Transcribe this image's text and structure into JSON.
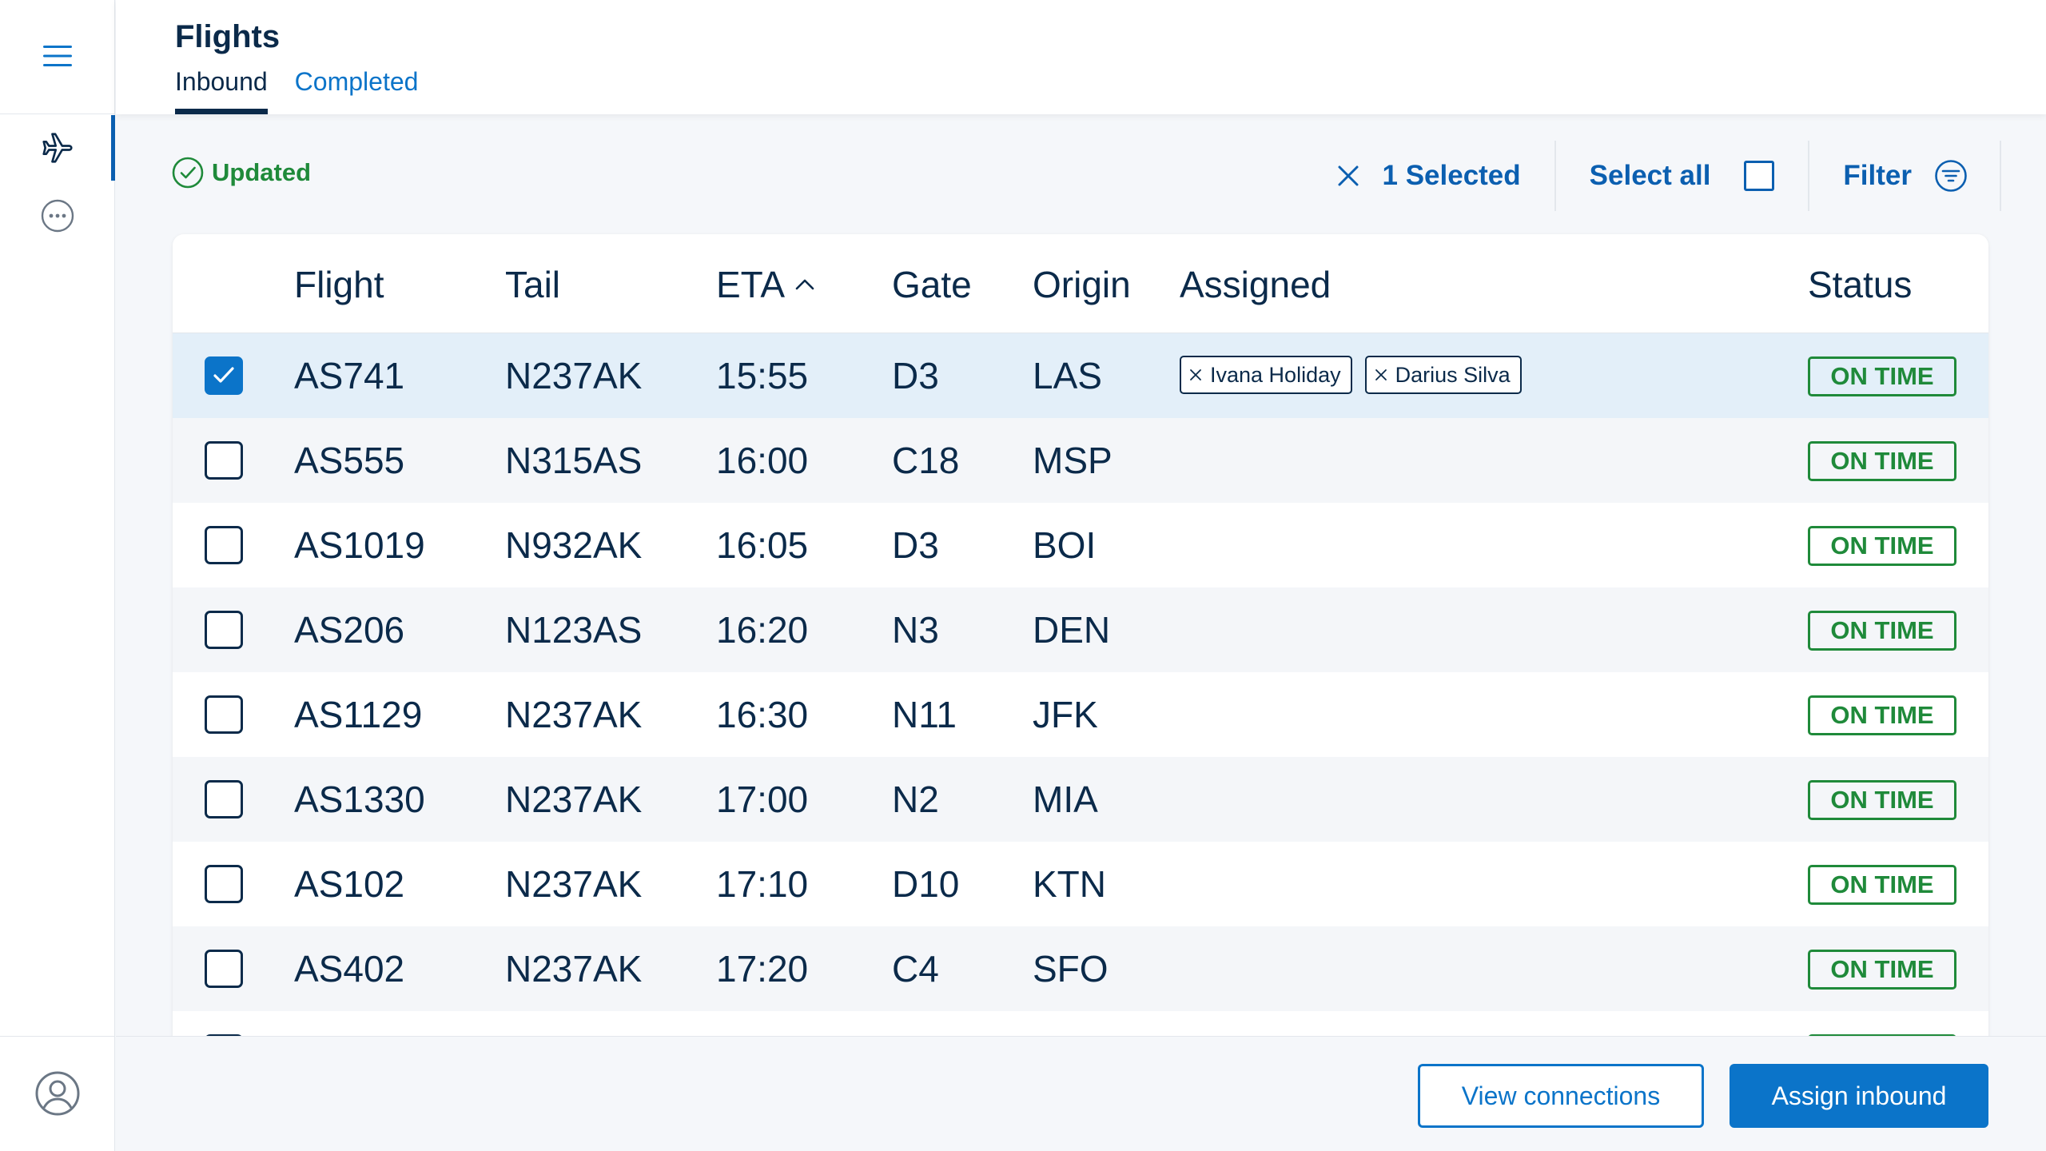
{
  "header": {
    "title": "Flights",
    "tabs": [
      {
        "label": "Inbound",
        "active": true
      },
      {
        "label": "Completed",
        "active": false
      }
    ]
  },
  "rail": {
    "items": [
      {
        "icon": "menu-icon"
      },
      {
        "icon": "airplane-icon",
        "active": true
      },
      {
        "icon": "more-horizontal-icon"
      },
      {
        "icon": "user-circle-icon"
      }
    ]
  },
  "toolbar": {
    "updated_label": "Updated",
    "selected_label": "1 Selected",
    "select_all_label": "Select all",
    "filter_label": "Filter"
  },
  "table": {
    "columns": [
      "Flight",
      "Tail",
      "ETA",
      "Gate",
      "Origin",
      "Assigned",
      "Status"
    ],
    "sort": {
      "column": "ETA",
      "direction": "asc"
    },
    "rows": [
      {
        "flight": "AS741",
        "tail": "N237AK",
        "eta": "15:55",
        "gate": "D3",
        "origin": "LAS",
        "assigned": [
          "Ivana Holiday",
          "Darius Silva"
        ],
        "status": "ON TIME",
        "selected": true
      },
      {
        "flight": "AS555",
        "tail": "N315AS",
        "eta": "16:00",
        "gate": "C18",
        "origin": "MSP",
        "assigned": [],
        "status": "ON TIME",
        "selected": false
      },
      {
        "flight": "AS1019",
        "tail": "N932AK",
        "eta": "16:05",
        "gate": "D3",
        "origin": "BOI",
        "assigned": [],
        "status": "ON TIME",
        "selected": false
      },
      {
        "flight": "AS206",
        "tail": "N123AS",
        "eta": "16:20",
        "gate": "N3",
        "origin": "DEN",
        "assigned": [],
        "status": "ON TIME",
        "selected": false
      },
      {
        "flight": "AS1129",
        "tail": "N237AK",
        "eta": "16:30",
        "gate": "N11",
        "origin": "JFK",
        "assigned": [],
        "status": "ON TIME",
        "selected": false
      },
      {
        "flight": "AS1330",
        "tail": "N237AK",
        "eta": "17:00",
        "gate": "N2",
        "origin": "MIA",
        "assigned": [],
        "status": "ON TIME",
        "selected": false
      },
      {
        "flight": "AS102",
        "tail": "N237AK",
        "eta": "17:10",
        "gate": "D10",
        "origin": "KTN",
        "assigned": [],
        "status": "ON TIME",
        "selected": false
      },
      {
        "flight": "AS402",
        "tail": "N237AK",
        "eta": "17:20",
        "gate": "C4",
        "origin": "SFO",
        "assigned": [],
        "status": "ON TIME",
        "selected": false
      }
    ]
  },
  "footer": {
    "view_connections_label": "View connections",
    "assign_inbound_label": "Assign inbound"
  },
  "colors": {
    "primary": "#0b74c9",
    "navy": "#0b2a4a",
    "success": "#1f8a3a",
    "selected_row": "#e3eff9"
  }
}
